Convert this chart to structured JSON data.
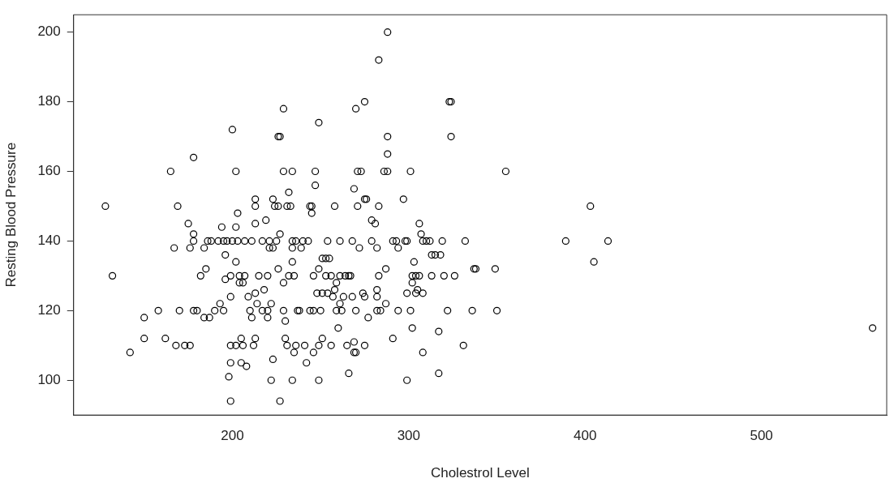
{
  "chart_data": {
    "type": "scatter",
    "xlabel": "Cholestrol Level",
    "ylabel": "Resting Blood Pressure",
    "color": "#000000",
    "marker": "circle",
    "grid": false,
    "legend": false,
    "xlim": [
      110,
      571
    ],
    "ylim": [
      90,
      205
    ],
    "xticks": [
      200,
      300,
      400,
      500
    ],
    "yticks": [
      100,
      120,
      140,
      160,
      180,
      200
    ],
    "x": [
      128,
      132,
      142,
      150,
      150,
      158,
      162,
      165,
      167,
      169,
      170,
      168,
      173,
      176,
      175,
      176,
      178,
      178,
      178,
      178,
      180,
      182,
      184,
      184,
      185,
      186,
      188,
      187,
      190,
      192,
      193,
      194,
      195,
      195,
      196,
      196,
      197,
      198,
      199,
      199,
      199,
      200,
      200,
      199,
      199,
      202,
      202,
      202,
      202,
      203,
      203,
      204,
      204,
      205,
      205,
      206,
      206,
      207,
      207,
      208,
      209,
      210,
      211,
      211,
      212,
      213,
      213,
      213,
      213,
      213,
      214,
      215,
      217,
      217,
      218,
      219,
      220,
      220,
      220,
      221,
      221,
      222,
      222,
      223,
      223,
      223,
      224,
      225,
      226,
      227,
      226,
      226,
      227,
      227,
      229,
      229,
      229,
      229,
      230,
      230,
      231,
      231,
      232,
      232,
      233,
      234,
      234,
      234,
      234,
      234,
      235,
      235,
      236,
      236,
      237,
      238,
      239,
      240,
      241,
      242,
      243,
      244,
      244,
      245,
      246,
      245,
      246,
      246,
      247,
      247,
      248,
      249,
      249,
      249,
      249,
      250,
      251,
      251,
      251,
      253,
      253,
      254,
      254,
      255,
      256,
      256,
      257,
      258,
      258,
      259,
      259,
      260,
      261,
      261,
      261,
      262,
      263,
      264,
      265,
      266,
      266,
      267,
      268,
      268,
      269,
      269,
      269,
      270,
      270,
      271,
      270,
      271,
      272,
      273,
      274,
      275,
      275,
      275,
      275,
      276,
      277,
      279,
      279,
      281,
      282,
      282,
      282,
      282,
      283,
      283,
      283,
      284,
      286,
      287,
      287,
      288,
      288,
      288,
      288,
      291,
      291,
      293,
      294,
      294,
      297,
      298,
      299,
      299,
      299,
      301,
      301,
      302,
      302,
      302,
      303,
      304,
      304,
      305,
      306,
      306,
      307,
      308,
      308,
      308,
      310,
      312,
      313,
      313,
      315,
      317,
      317,
      318,
      319,
      320,
      322,
      323,
      324,
      324,
      326,
      331,
      332,
      336,
      337,
      338,
      349,
      350,
      355,
      389,
      403,
      405,
      413,
      563
    ],
    "values": [
      150,
      130,
      108,
      118,
      112,
      120,
      112,
      160,
      138,
      150,
      120,
      110,
      110,
      110,
      145,
      138,
      164,
      142,
      140,
      120,
      120,
      130,
      118,
      138,
      132,
      140,
      140,
      118,
      120,
      140,
      122,
      144,
      140,
      120,
      136,
      129,
      140,
      101,
      110,
      124,
      130,
      172,
      140,
      105,
      94,
      160,
      144,
      110,
      134,
      140,
      148,
      128,
      130,
      112,
      105,
      128,
      110,
      130,
      140,
      104,
      124,
      120,
      118,
      140,
      110,
      152,
      145,
      112,
      150,
      125,
      122,
      130,
      120,
      140,
      126,
      146,
      130,
      118,
      120,
      138,
      140,
      100,
      122,
      106,
      152,
      138,
      150,
      140,
      170,
      170,
      150,
      132,
      142,
      94,
      178,
      160,
      120,
      128,
      112,
      117,
      110,
      150,
      154,
      130,
      150,
      160,
      140,
      134,
      138,
      100,
      108,
      130,
      110,
      140,
      120,
      120,
      138,
      140,
      110,
      105,
      140,
      120,
      150,
      148,
      108,
      150,
      120,
      130,
      156,
      160,
      125,
      132,
      174,
      110,
      100,
      120,
      125,
      135,
      112,
      135,
      130,
      140,
      125,
      135,
      110,
      130,
      124,
      150,
      126,
      120,
      128,
      115,
      122,
      130,
      140,
      120,
      124,
      130,
      110,
      102,
      130,
      130,
      124,
      140,
      111,
      108,
      155,
      120,
      108,
      160,
      178,
      150,
      138,
      160,
      125,
      152,
      180,
      110,
      124,
      152,
      118,
      146,
      140,
      145,
      126,
      138,
      124,
      120,
      150,
      192,
      130,
      120,
      160,
      122,
      132,
      200,
      170,
      165,
      160,
      112,
      140,
      140,
      138,
      120,
      152,
      140,
      100,
      140,
      125,
      160,
      120,
      115,
      130,
      128,
      134,
      125,
      130,
      126,
      145,
      130,
      142,
      108,
      125,
      140,
      140,
      140,
      136,
      130,
      136,
      114,
      102,
      136,
      140,
      130,
      120,
      180,
      180,
      170,
      130,
      110,
      140,
      120,
      132,
      132,
      132,
      120,
      160,
      140,
      150,
      134,
      140,
      115
    ]
  }
}
